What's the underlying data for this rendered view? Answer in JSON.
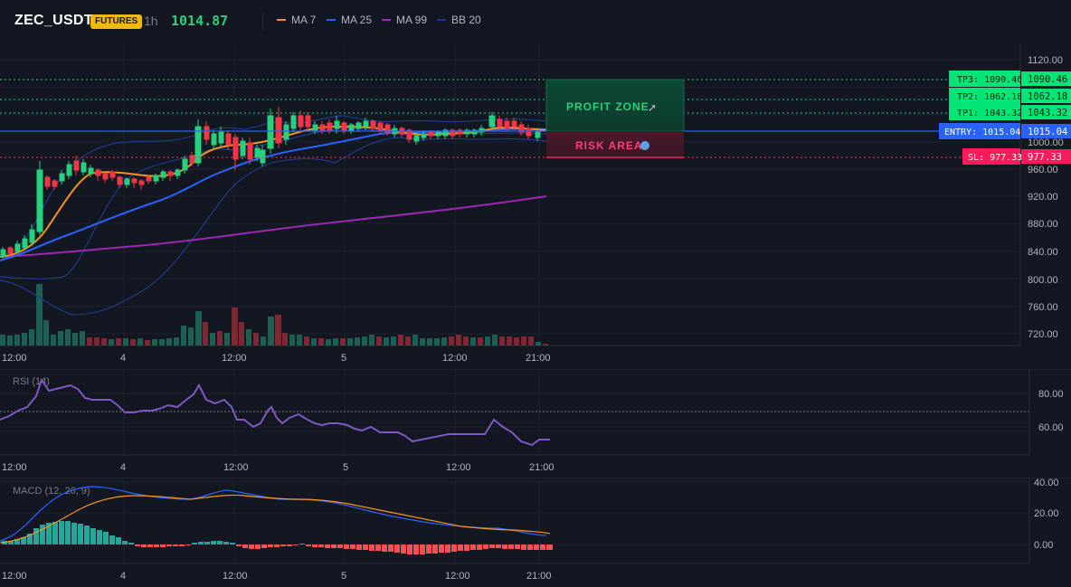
{
  "header": {
    "symbol": "ZEC_USDT",
    "badge": "FUTURES",
    "timeframe": "1h",
    "price": "1014.87"
  },
  "legend": [
    {
      "label": "MA 7",
      "color": "#f7931a"
    },
    {
      "label": "MA 25",
      "color": "#2962ff"
    },
    {
      "label": "MA 99",
      "color": "#9c27b0"
    },
    {
      "label": "BB 20",
      "color": "#1e3a8a"
    }
  ],
  "price_axis": [
    "1120.00",
    "1000.00",
    "960.00",
    "920.00",
    "880.00",
    "840.00",
    "800.00",
    "760.00",
    "720.00"
  ],
  "time_axis": [
    "12:00",
    "4",
    "12:00",
    "5",
    "12:00",
    "21:00"
  ],
  "levels": {
    "tp3": {
      "label": "TP3: 1090.46",
      "value": "1090.46"
    },
    "tp2": {
      "label": "TP2: 1062.18",
      "value": "1062.18"
    },
    "tp1": {
      "label": "TP1: 1043.32",
      "value": "1043.32"
    },
    "entry": {
      "label": "ENTRY: 1015.04",
      "value": "1015.04"
    },
    "sl": {
      "label": "SL: 977.33",
      "value": "977.33"
    }
  },
  "zones": {
    "profit": "PROFIT ZONE",
    "risk": "RISK AREA"
  },
  "rsi": {
    "title": "RSI (14)",
    "axis": [
      "80.00",
      "60.00"
    ],
    "time_axis": [
      "12:00",
      "4",
      "12:00",
      "5",
      "12:00",
      "21:00"
    ]
  },
  "macd": {
    "title": "MACD (12, 26, 9)",
    "axis": [
      "40.00",
      "20.00",
      "0.00"
    ],
    "time_axis": [
      "12:00",
      "4",
      "12:00",
      "5",
      "12:00",
      "21:00"
    ]
  },
  "colors": {
    "up": "#26d07c",
    "down": "#f23645",
    "profit": "#00e676",
    "risk": "#ff1a5c",
    "entry": "#2962ff"
  }
}
